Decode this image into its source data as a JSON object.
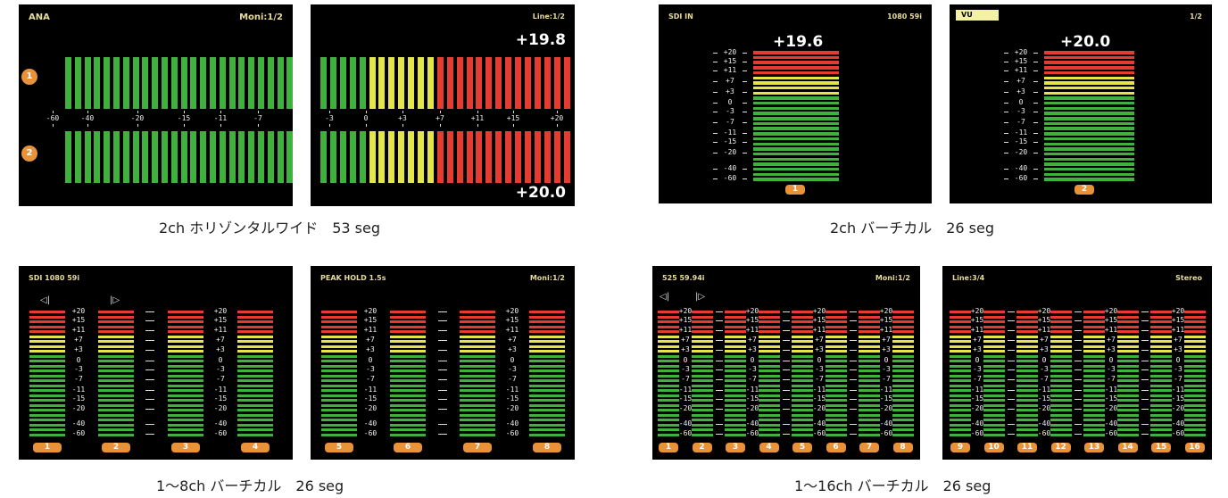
{
  "colors": {
    "green": "#3fb13c",
    "yellow": "#e4e54a",
    "red": "#e53b30",
    "orange": "#e8923a",
    "header": "#e8dc9a",
    "background": "#000000"
  },
  "panel1": {
    "caption": "2ch ホリゾンタルワイド　53 seg",
    "left": {
      "label": "ANA",
      "mode": "Moni:1/2",
      "ticks": [
        "-60",
        "-40",
        "-20",
        "-15",
        "-11",
        "-7"
      ],
      "channels": [
        "1",
        "2"
      ]
    },
    "right": {
      "mode": "Line:1/2",
      "top_value": "+19.8",
      "bottom_value": "+20.0",
      "ticks": [
        "-3",
        "0",
        "+3",
        "+7",
        "+11",
        "+15",
        "+20"
      ]
    }
  },
  "panel2": {
    "caption": "2ch バーチカル　26 seg",
    "left": {
      "label": "SDI IN",
      "format": "1080 59i",
      "value": "+19.6",
      "channel": "1"
    },
    "right": {
      "label": "VU",
      "mode": "1/2",
      "value": "+20.0",
      "channel": "2"
    },
    "ticks": [
      "+20",
      "+15",
      "+11",
      "+7",
      "+3",
      "0",
      "-3",
      "-7",
      "-11",
      "-15",
      "-20",
      "-40",
      "-60"
    ]
  },
  "panel3": {
    "caption": "1～8ch バーチカル　26 seg",
    "left": {
      "label": "SDI  1080 59i",
      "channels": [
        "1",
        "2",
        "3",
        "4"
      ]
    },
    "right": {
      "label": "PEAK HOLD 1.5s",
      "mode": "Moni:1/2",
      "channels": [
        "5",
        "6",
        "7",
        "8"
      ]
    },
    "ticks": [
      "+20",
      "+15",
      "+11",
      "+7",
      "+3",
      "0",
      "-3",
      "-7",
      "-11",
      "-15",
      "-20",
      "-40",
      "-60"
    ]
  },
  "panel4": {
    "caption": "1～16ch バーチカル　26 seg",
    "left": {
      "label": "525 59.94i",
      "mode": "Moni:1/2",
      "channels": [
        "1",
        "2",
        "3",
        "4",
        "5",
        "6",
        "7",
        "8"
      ]
    },
    "right": {
      "label": "Line:3/4",
      "mode": "Stereo",
      "channels": [
        "9",
        "10",
        "11",
        "12",
        "13",
        "14",
        "15",
        "16"
      ]
    },
    "ticks": [
      "+20",
      "+15",
      "+11",
      "+7",
      "+3",
      "0",
      "-3",
      "-7",
      "-11",
      "-15",
      "-20",
      "-40",
      "-60"
    ]
  }
}
